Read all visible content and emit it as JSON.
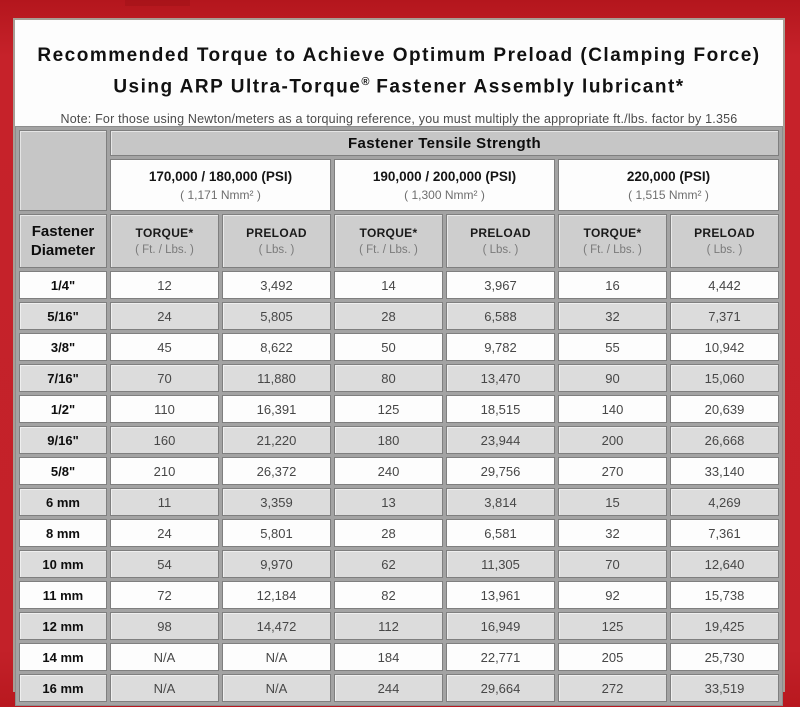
{
  "title": {
    "line1": "Recommended Torque to Achieve Optimum Preload (Clamping Force)",
    "line2_prefix": "Using ARP Ultra-Torque",
    "line2_reg": "®",
    "line2_suffix": " Fastener Assembly lubricant*",
    "note": "Note: For those using Newton/meters as a torquing reference, you must multiply the appropriate ft./lbs. factor by 1.356"
  },
  "table": {
    "tensile_header": "Fastener Tensile Strength",
    "corner_line1": "Fastener",
    "corner_line2": "Diameter",
    "groups": [
      {
        "psi": "170,000 / 180,000 (PSI)",
        "nmm": "( 1,171 Nmm² )"
      },
      {
        "psi": "190,000 / 200,000 (PSI)",
        "nmm": "( 1,300 Nmm² )"
      },
      {
        "psi": "220,000 (PSI)",
        "nmm": "( 1,515 Nmm² )"
      }
    ],
    "sub_headers": {
      "torque": "TORQUE*",
      "torque_unit": "( Ft. / Lbs. )",
      "preload": "PRELOAD",
      "preload_unit": "( Lbs. )"
    },
    "rows": [
      {
        "diameter": "1/4\"",
        "values": [
          "12",
          "3,492",
          "14",
          "3,967",
          "16",
          "4,442"
        ]
      },
      {
        "diameter": "5/16\"",
        "values": [
          "24",
          "5,805",
          "28",
          "6,588",
          "32",
          "7,371"
        ]
      },
      {
        "diameter": "3/8\"",
        "values": [
          "45",
          "8,622",
          "50",
          "9,782",
          "55",
          "10,942"
        ]
      },
      {
        "diameter": "7/16\"",
        "values": [
          "70",
          "11,880",
          "80",
          "13,470",
          "90",
          "15,060"
        ]
      },
      {
        "diameter": "1/2\"",
        "values": [
          "110",
          "16,391",
          "125",
          "18,515",
          "140",
          "20,639"
        ]
      },
      {
        "diameter": "9/16\"",
        "values": [
          "160",
          "21,220",
          "180",
          "23,944",
          "200",
          "26,668"
        ]
      },
      {
        "diameter": "5/8\"",
        "values": [
          "210",
          "26,372",
          "240",
          "29,756",
          "270",
          "33,140"
        ]
      },
      {
        "diameter": "6 mm",
        "values": [
          "11",
          "3,359",
          "13",
          "3,814",
          "15",
          "4,269"
        ]
      },
      {
        "diameter": "8 mm",
        "values": [
          "24",
          "5,801",
          "28",
          "6,581",
          "32",
          "7,361"
        ]
      },
      {
        "diameter": "10 mm",
        "values": [
          "54",
          "9,970",
          "62",
          "11,305",
          "70",
          "12,640"
        ]
      },
      {
        "diameter": "11 mm",
        "values": [
          "72",
          "12,184",
          "82",
          "13,961",
          "92",
          "15,738"
        ]
      },
      {
        "diameter": "12 mm",
        "values": [
          "98",
          "14,472",
          "112",
          "16,949",
          "125",
          "19,425"
        ]
      },
      {
        "diameter": "14 mm",
        "values": [
          "N/A",
          "N/A",
          "184",
          "22,771",
          "205",
          "25,730"
        ]
      },
      {
        "diameter": "16 mm",
        "values": [
          "N/A",
          "N/A",
          "244",
          "29,664",
          "272",
          "33,519"
        ]
      }
    ]
  },
  "colors": {
    "frame_red": "#c32129",
    "panel_border_tan": "#a79e95",
    "table_grid_gray": "#a3a3a3",
    "header_cell_gray": "#c9c9c9",
    "alt_row_gray": "#dcdcdc",
    "white_cell": "#fdfdfd"
  }
}
